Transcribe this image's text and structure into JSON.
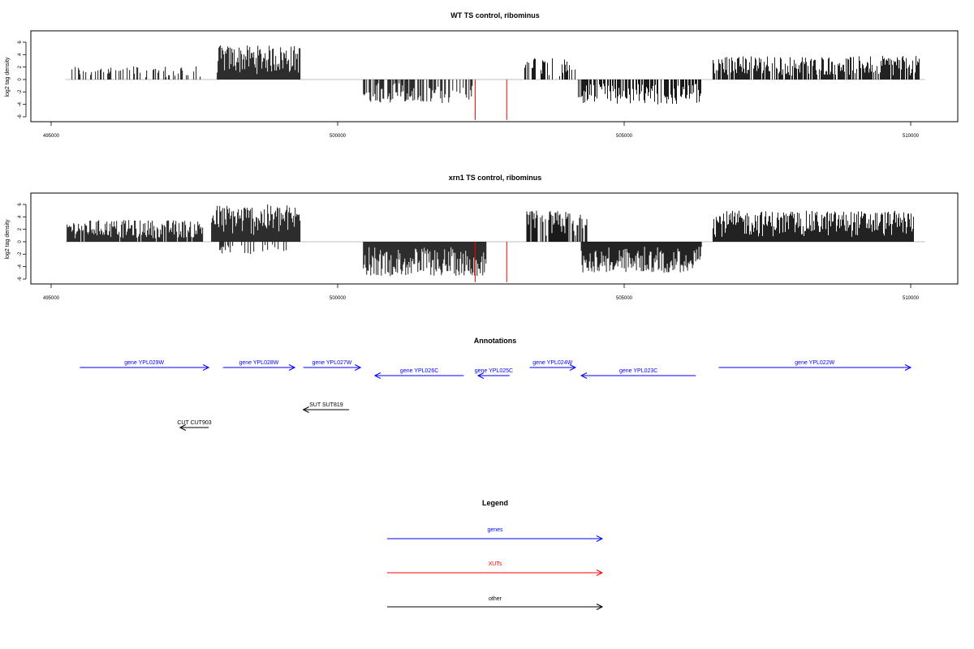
{
  "chart_data": [
    {
      "type": "bar",
      "title": "WT TS control, ribominus",
      "xlabel": "",
      "ylabel": "log2 tag density",
      "xlim": [
        495000,
        510000
      ],
      "ylim": [
        -6,
        6
      ],
      "x_ticks": [
        {
          "value": 495000,
          "label": "495000"
        },
        {
          "value": 500000,
          "label": "500000"
        },
        {
          "value": 505000,
          "label": "505000"
        },
        {
          "value": 510000,
          "label": "510000"
        }
      ],
      "y_ticks": [
        {
          "value": 6,
          "label": "6"
        },
        {
          "value": 4,
          "label": "4"
        },
        {
          "value": 2,
          "label": "2"
        },
        {
          "value": 0,
          "label": "0"
        },
        {
          "value": -2,
          "label": "-2"
        },
        {
          "value": -4,
          "label": "-4"
        },
        {
          "value": -6,
          "label": "-6"
        }
      ],
      "baseline": {
        "from": 495250,
        "to": 510250,
        "color": "#aaaaaa"
      },
      "color": "#000000",
      "highlight_color": "#ff0000",
      "segments": [
        {
          "from": 495350,
          "to": 497650,
          "sign": 1,
          "max": 2.2,
          "density": 0.35
        },
        {
          "from": 497900,
          "to": 499350,
          "sign": 1,
          "max": 5.5,
          "density": 1.0
        },
        {
          "from": 500450,
          "to": 502350,
          "sign": -1,
          "max": 3.8,
          "density": 0.6
        },
        {
          "from": 503250,
          "to": 504150,
          "sign": 1,
          "max": 3.6,
          "density": 0.45
        },
        {
          "from": 504200,
          "to": 506350,
          "sign": -1,
          "max": 4.0,
          "density": 0.7
        },
        {
          "from": 506550,
          "to": 510150,
          "sign": 1,
          "max": 3.8,
          "density": 0.8
        }
      ],
      "highlights": [
        {
          "x": 502400,
          "y": -6.5
        },
        {
          "x": 502950,
          "y": -6.5
        }
      ]
    },
    {
      "type": "bar",
      "title": "xrn1 TS control, ribominus",
      "xlabel": "",
      "ylabel": "log2 tag density",
      "xlim": [
        495000,
        510000
      ],
      "ylim": [
        -6,
        6
      ],
      "x_ticks": [
        {
          "value": 495000,
          "label": "495000"
        },
        {
          "value": 500000,
          "label": "500000"
        },
        {
          "value": 505000,
          "label": "505000"
        },
        {
          "value": 510000,
          "label": "510000"
        }
      ],
      "y_ticks": [
        {
          "value": 6,
          "label": "6"
        },
        {
          "value": 4,
          "label": "4"
        },
        {
          "value": 2,
          "label": "2"
        },
        {
          "value": 0,
          "label": "0"
        },
        {
          "value": -2,
          "label": "-2"
        },
        {
          "value": -4,
          "label": "-4"
        },
        {
          "value": -6,
          "label": "-6"
        }
      ],
      "baseline": {
        "from": 495250,
        "to": 510250,
        "color": "#aaaaaa"
      },
      "color": "#000000",
      "highlight_color": "#ff0000",
      "segments": [
        {
          "from": 495250,
          "to": 497650,
          "sign": 1,
          "max": 3.5,
          "density": 0.9
        },
        {
          "from": 497800,
          "to": 499350,
          "sign": 1,
          "max": 6.0,
          "density": 1.0
        },
        {
          "from": 497900,
          "to": 499200,
          "sign": -1,
          "max": 2.0,
          "density": 0.25
        },
        {
          "from": 500450,
          "to": 502600,
          "sign": -1,
          "max": 5.5,
          "density": 1.0
        },
        {
          "from": 503300,
          "to": 504350,
          "sign": 1,
          "max": 5.0,
          "density": 0.8
        },
        {
          "from": 504250,
          "to": 506350,
          "sign": -1,
          "max": 5.0,
          "density": 1.0
        },
        {
          "from": 506550,
          "to": 510050,
          "sign": 1,
          "max": 5.0,
          "density": 1.0
        }
      ],
      "highlights": [
        {
          "x": 502400,
          "y": -6.5
        },
        {
          "x": 502950,
          "y": -6.5
        }
      ]
    }
  ],
  "annotations": {
    "title": "Annotations",
    "features": [
      {
        "label": "gene YPL029W",
        "start": 495500,
        "end": 497750,
        "strand": "+",
        "row": 0,
        "kind": "gene"
      },
      {
        "label": "gene YPL028W",
        "start": 498000,
        "end": 499250,
        "strand": "+",
        "row": 0,
        "kind": "gene"
      },
      {
        "label": "gene YPL027W",
        "start": 499400,
        "end": 500400,
        "strand": "+",
        "row": 0,
        "kind": "gene"
      },
      {
        "label": "gene YPL026C",
        "start": 500650,
        "end": 502200,
        "strand": "-",
        "row": 1,
        "kind": "gene"
      },
      {
        "label": "gene YPL025C",
        "start": 502450,
        "end": 503000,
        "strand": "-",
        "row": 1,
        "kind": "gene"
      },
      {
        "label": "gene YPL024W",
        "start": 503350,
        "end": 504150,
        "strand": "+",
        "row": 0,
        "kind": "gene"
      },
      {
        "label": "gene YPL023C",
        "start": 504250,
        "end": 506250,
        "strand": "-",
        "row": 1,
        "kind": "gene"
      },
      {
        "label": "gene YPL022W",
        "start": 506650,
        "end": 510000,
        "strand": "+",
        "row": 0,
        "kind": "gene"
      },
      {
        "label": "SUT SUT819",
        "start": 499400,
        "end": 500200,
        "strand": "-",
        "row": 2,
        "kind": "other"
      },
      {
        "label": "CUT CUT903",
        "start": 497250,
        "end": 497750,
        "strand": "-",
        "row": 3,
        "kind": "other"
      }
    ]
  },
  "legend": {
    "title": "Legend",
    "items": [
      {
        "label": "genes",
        "color": "#0000ff"
      },
      {
        "label": "XUTs",
        "color": "#ff0000"
      },
      {
        "label": "other",
        "color": "#000000"
      }
    ]
  }
}
